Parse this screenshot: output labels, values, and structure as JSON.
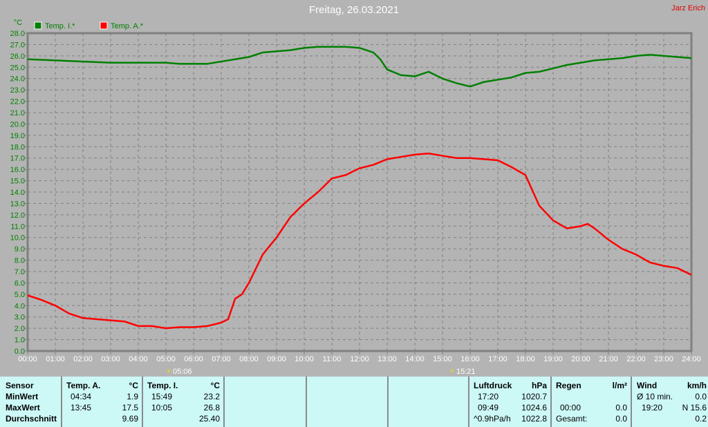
{
  "title": "Freitag, 26.03.2021",
  "author": "Jarz Erich",
  "colors": {
    "temp_i": "#008000",
    "temp_a": "#ff0000",
    "axis_text": "#008000",
    "table_bg": "#ccf8f6"
  },
  "markers": {
    "sunrise": "05:06",
    "sunset": "15:21"
  },
  "chart_data": {
    "type": "line",
    "title": "Freitag, 26.03.2021",
    "ylabel": "°C",
    "ylim": [
      0,
      28
    ],
    "yticks": [
      "0.0",
      "1.0",
      "2.0",
      "3.0",
      "4.0",
      "5.0",
      "6.0",
      "7.0",
      "8.0",
      "9.0",
      "10.0",
      "11.0",
      "12.0",
      "13.0",
      "14.0",
      "15.0",
      "16.0",
      "17.0",
      "18.0",
      "19.0",
      "20.0",
      "21.0",
      "22.0",
      "23.0",
      "24.0",
      "25.0",
      "26.0",
      "27.0",
      "28.0"
    ],
    "xticks": [
      "00:00",
      "01:00",
      "02:00",
      "03:00",
      "04:00",
      "05:00",
      "06:00",
      "07:00",
      "08:00",
      "09:00",
      "10:00",
      "11:00",
      "12:00",
      "13:00",
      "14:00",
      "15:00",
      "16:00",
      "17:00",
      "18:00",
      "19:00",
      "20:00",
      "21:00",
      "22:00",
      "23:00",
      "24:00"
    ],
    "grid": true,
    "legend": "top-left",
    "series": [
      {
        "name": "Temp. I.*",
        "color": "#008000",
        "x": [
          0,
          1,
          2,
          3,
          4,
          5,
          5.5,
          6.5,
          7,
          7.5,
          8,
          8.5,
          9,
          9.5,
          10,
          10.5,
          11,
          11.5,
          12,
          12.5,
          12.75,
          13,
          13.5,
          14,
          14.5,
          15,
          15.5,
          16,
          16.5,
          17,
          17.5,
          18,
          18.5,
          19,
          19.5,
          20,
          20.5,
          21,
          21.5,
          22,
          22.5,
          23,
          23.5,
          24
        ],
        "y": [
          25.7,
          25.6,
          25.5,
          25.4,
          25.4,
          25.4,
          25.3,
          25.3,
          25.5,
          25.7,
          25.9,
          26.3,
          26.4,
          26.5,
          26.7,
          26.8,
          26.8,
          26.8,
          26.7,
          26.3,
          25.7,
          24.8,
          24.3,
          24.2,
          24.6,
          24.0,
          23.6,
          23.3,
          23.7,
          23.9,
          24.1,
          24.5,
          24.6,
          24.9,
          25.2,
          25.4,
          25.6,
          25.7,
          25.8,
          26.0,
          26.1,
          26.0,
          25.9,
          25.8
        ]
      },
      {
        "name": "Temp. A.*",
        "color": "#ff0000",
        "x": [
          0,
          0.5,
          1,
          1.5,
          2,
          2.5,
          3,
          3.5,
          4,
          4.5,
          5,
          5.5,
          6,
          6.5,
          7,
          7.25,
          7.5,
          7.75,
          8,
          8.5,
          9,
          9.5,
          10,
          10.5,
          11,
          11.5,
          12,
          12.5,
          13,
          13.5,
          14,
          14.5,
          15,
          15.5,
          16,
          16.5,
          17,
          17.5,
          18,
          18.5,
          19,
          19.5,
          20,
          20.25,
          20.5,
          21,
          21.5,
          22,
          22.5,
          23,
          23.5,
          24
        ],
        "y": [
          4.9,
          4.5,
          4.0,
          3.3,
          2.9,
          2.8,
          2.7,
          2.6,
          2.2,
          2.2,
          2.0,
          2.1,
          2.1,
          2.2,
          2.5,
          2.8,
          4.6,
          5.0,
          6.0,
          8.5,
          10.0,
          11.8,
          13.0,
          14.0,
          15.2,
          15.5,
          16.1,
          16.4,
          16.9,
          17.1,
          17.3,
          17.4,
          17.2,
          17.0,
          17.0,
          16.9,
          16.8,
          16.2,
          15.5,
          12.8,
          11.5,
          10.8,
          11.0,
          11.2,
          10.8,
          9.8,
          9.0,
          8.5,
          7.8,
          7.5,
          7.3,
          6.7
        ]
      }
    ]
  },
  "table": {
    "temp_a": {
      "header": "Temp. A.",
      "unit": "°C",
      "min_time": "04:34",
      "min": "1.9",
      "max_time": "13:45",
      "max": "17.5",
      "avg": "9.69"
    },
    "temp_i": {
      "header": "Temp. I.",
      "unit": "°C",
      "min_time": "15:49",
      "min": "23.2",
      "max_time": "10:05",
      "max": "26.8",
      "avg": "25.40"
    },
    "rows": {
      "sensor": "Sensor",
      "min": "MinWert",
      "max": "MaxWert",
      "avg": "Durchschnitt"
    },
    "pressure": {
      "header": "Luftdruck",
      "unit": "hPa",
      "r1t": "17:20",
      "r1": "1020.7",
      "r2t": "09:49",
      "r2": "1024.6",
      "r3t": "^0.9hPa/h",
      "r3": "1022.8"
    },
    "rain": {
      "header": "Regen",
      "unit": "l/m²",
      "r2t": "00:00",
      "r2": "0.0",
      "r3t": "Gesamt:",
      "r3": "0.0"
    },
    "wind": {
      "header": "Wind",
      "unit": "km/h",
      "r1t": "Ø 10 min.",
      "r1": "0.0",
      "r2t": "19:20",
      "r2": "N 15.6",
      "r3": "0.2"
    }
  }
}
